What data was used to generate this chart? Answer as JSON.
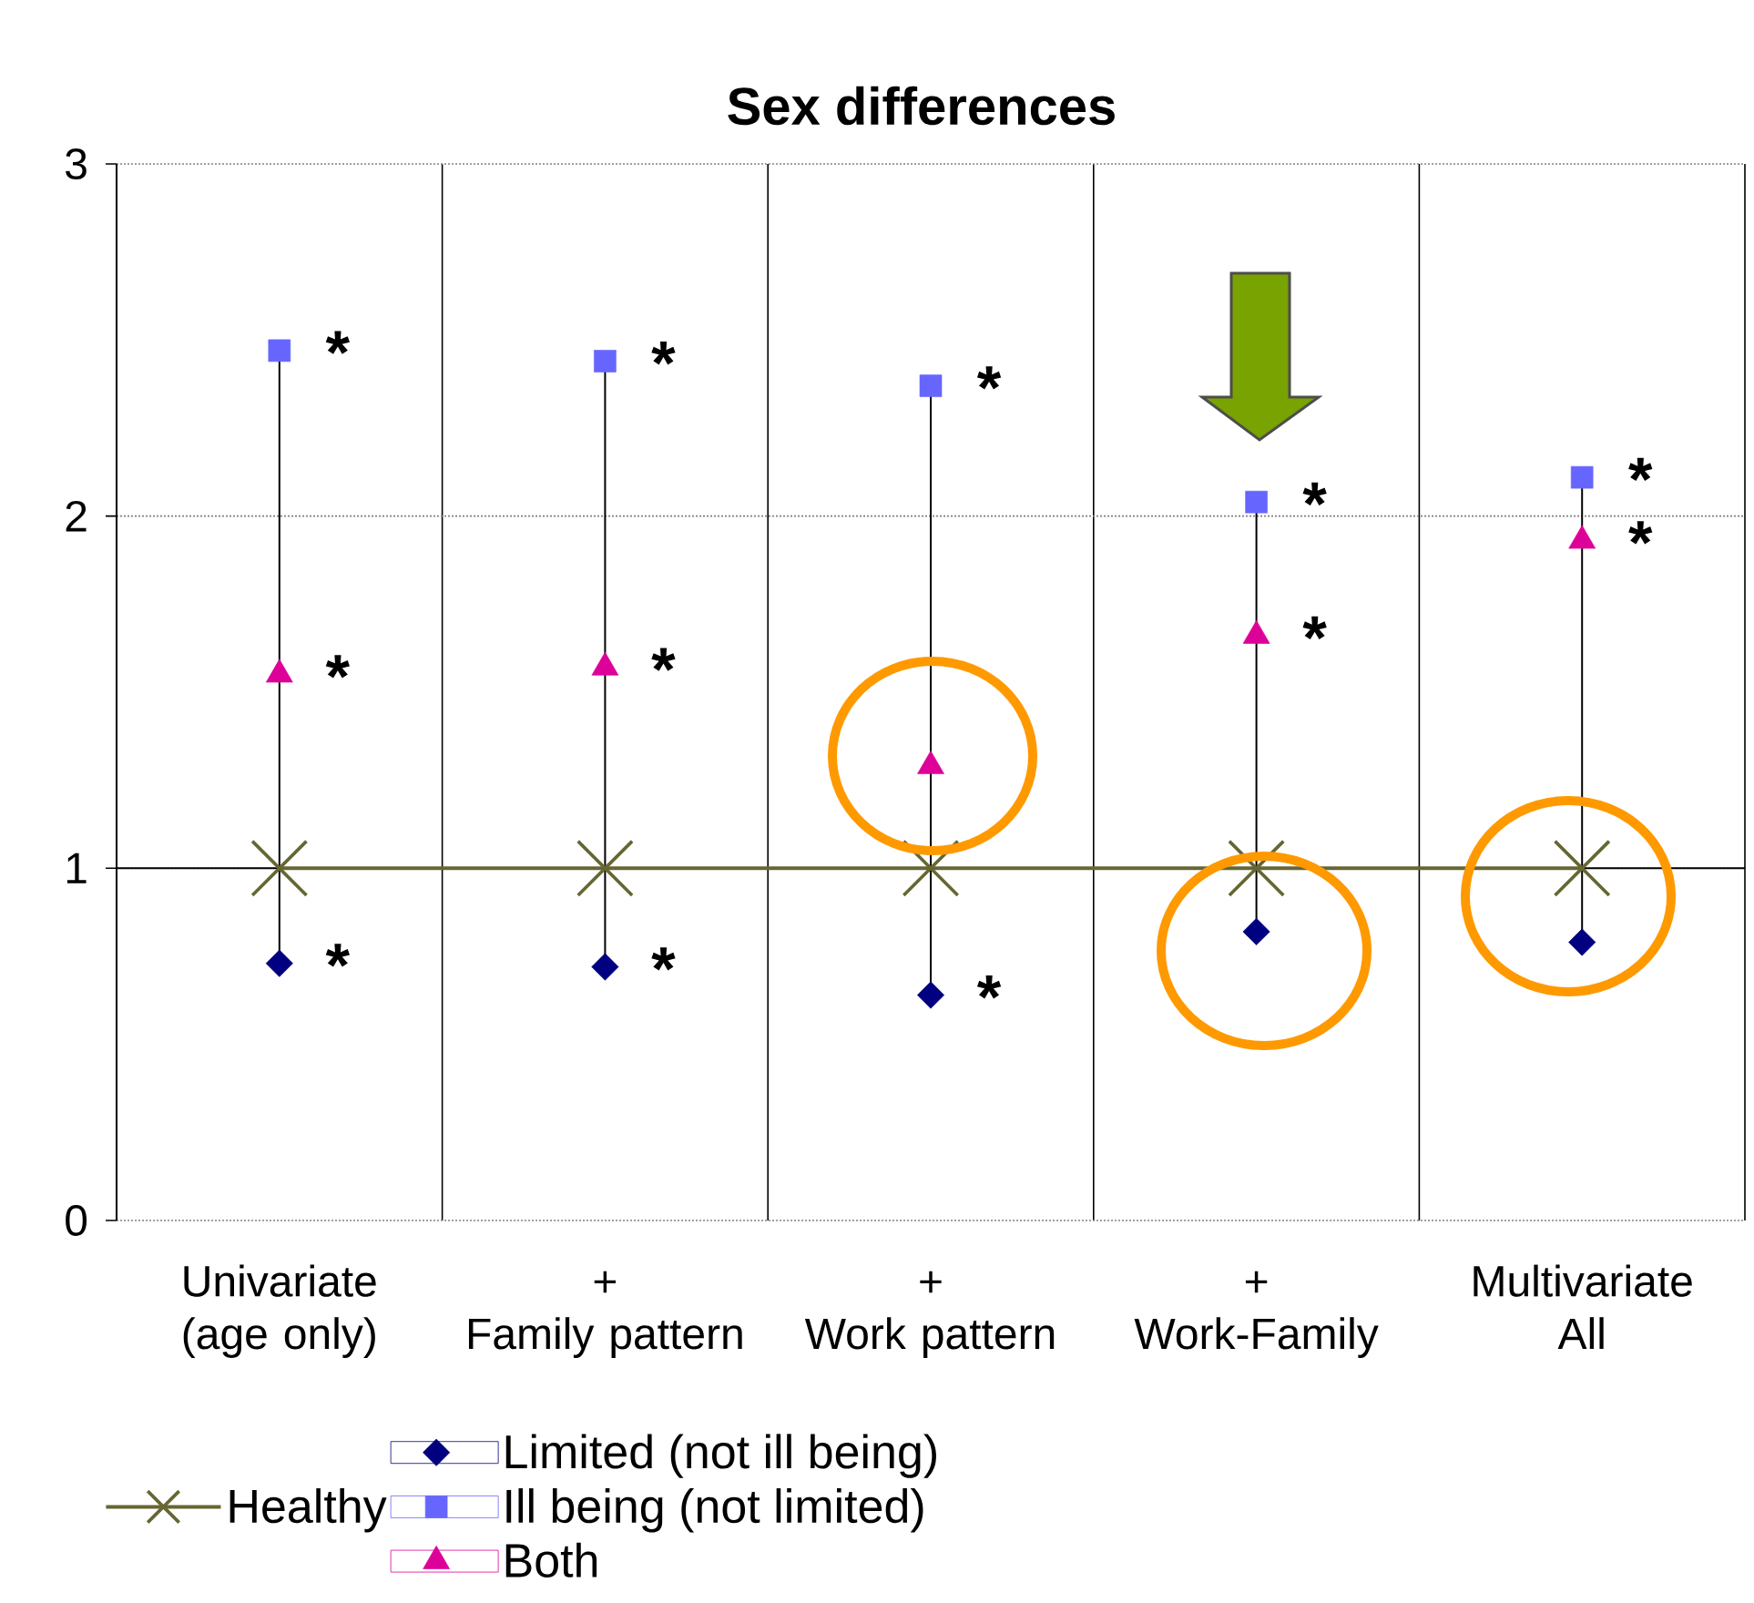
{
  "chart_data": {
    "type": "scatter",
    "title": "Sex differences",
    "categories": [
      "Univariate\n(age only)",
      "+\nFamily pattern",
      "+\nWork pattern",
      "+\nWork-Family",
      "Multivariate\nAll"
    ],
    "series": [
      {
        "name": "Healthy",
        "type": "line",
        "marker": "cross",
        "color": "#666633",
        "values": [
          1,
          1,
          1,
          1,
          1
        ]
      },
      {
        "name": "Limited (not ill being)",
        "marker": "diamond",
        "color": "#000080",
        "values": [
          0.73,
          0.72,
          0.64,
          0.82,
          0.79
        ]
      },
      {
        "name": "Ill being (not limited)",
        "marker": "square",
        "color": "#6666ff",
        "values": [
          2.47,
          2.44,
          2.37,
          2.04,
          2.11
        ]
      },
      {
        "name": "Both",
        "marker": "triangle",
        "color": "#dd0099",
        "values": [
          1.55,
          1.57,
          1.29,
          1.66,
          1.93
        ]
      }
    ],
    "ylim": [
      0,
      3
    ],
    "yticks": [
      0,
      1,
      2,
      3
    ],
    "grid": true,
    "legend": "bottom",
    "ref_lines": [
      {
        "axis": "y",
        "value": 1,
        "color": "#000000"
      }
    ],
    "annotations": [
      {
        "text": "*",
        "x": "Univariate\n(age only)",
        "y": 2.47
      },
      {
        "text": "*",
        "x": "Univariate\n(age only)",
        "y": 1.55
      },
      {
        "text": "*",
        "x": "Univariate\n(age only)",
        "y": 0.73
      },
      {
        "text": "*",
        "x": "+\nFamily pattern",
        "y": 2.44
      },
      {
        "text": "*",
        "x": "+\nFamily pattern",
        "y": 1.57
      },
      {
        "text": "*",
        "x": "+\nFamily pattern",
        "y": 0.72
      },
      {
        "text": "*",
        "x": "+\nWork pattern",
        "y": 2.37
      },
      {
        "text": "*",
        "x": "+\nWork pattern",
        "y": 0.64
      },
      {
        "text": "*",
        "x": "+\nWork-Family",
        "y": 2.04
      },
      {
        "text": "*",
        "x": "+\nWork-Family",
        "y": 1.66
      },
      {
        "text": "*",
        "x": "Multivariate\nAll",
        "y": 2.11
      },
      {
        "text": "*",
        "x": "Multivariate\nAll",
        "y": 1.93
      }
    ]
  }
}
